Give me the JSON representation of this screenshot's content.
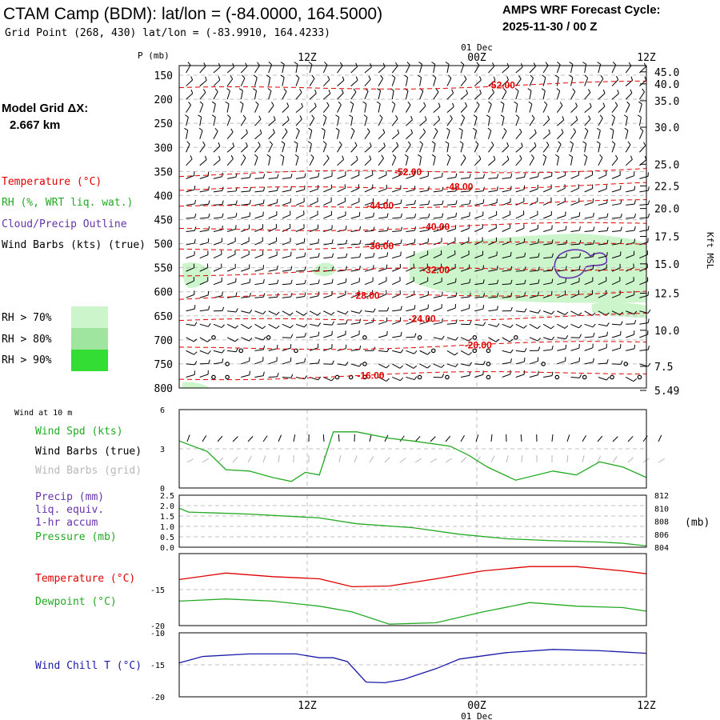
{
  "header": {
    "title": "CTAM Camp (BDM):  lat/lon = (-84.0000, 164.5000)",
    "grid_point": "Grid Point (268, 430) lat/lon = (-83.9910, 164.4233)",
    "cycle_label": "AMPS WRF Forecast Cycle:",
    "cycle_value": "2025-11-30 / 00  Z",
    "model_grid_label": "Model Grid ΔX:",
    "model_grid_value": "2.667 km"
  },
  "colors": {
    "temperature": "#e00000",
    "rh": "#22aa22",
    "cloud": "#6633aa",
    "wind_chill": "#1a1aaa",
    "rh70": "#ccf5cc",
    "rh80": "#9fe59f",
    "rh90": "#33dd33",
    "grid": "#c0c0c0",
    "gray_text": "#b8b8b8"
  },
  "legend": {
    "temperature": "Temperature (°C)",
    "rh": "RH (%, WRT liq. wat.)",
    "cloud": "Cloud/Precip Outline",
    "wind_barbs": "Wind Barbs (kts) (true)",
    "rh70": "RH > 70%",
    "rh80": "RH > 80%",
    "rh90": "RH > 90%"
  },
  "time_axis": {
    "top_date": "01 Dec",
    "bottom_date": "01 Dec",
    "ticks": [
      "12Z",
      "00Z",
      "12Z"
    ]
  },
  "chart_data": [
    {
      "id": "profile",
      "type": "contour",
      "ylabel": "P (mb)",
      "right_label": "Kft MSL",
      "pressure_ticks": [
        150,
        200,
        250,
        300,
        350,
        400,
        450,
        500,
        550,
        600,
        650,
        700,
        750,
        800
      ],
      "pressure_range": [
        130,
        800
      ],
      "height_ticks": [
        {
          "label": "45.0",
          "p": 143
        },
        {
          "label": "40.0",
          "p": 168
        },
        {
          "label": "35.0",
          "p": 203
        },
        {
          "label": "30.0",
          "p": 258
        },
        {
          "label": "25.0",
          "p": 335
        },
        {
          "label": "22.5",
          "p": 380
        },
        {
          "label": "20.0",
          "p": 427
        },
        {
          "label": "17.5",
          "p": 485
        },
        {
          "label": "15.0",
          "p": 542
        },
        {
          "label": "12.5",
          "p": 603
        },
        {
          "label": "10.0",
          "p": 680
        },
        {
          "label": "7.5",
          "p": 755
        },
        {
          "label": "5.49",
          "p": 805
        }
      ],
      "temperature_contours": [
        {
          "label": "-52.00",
          "t": 0.69,
          "p": 171
        },
        {
          "label": "-52.00",
          "t": 0.49,
          "p": 351
        },
        {
          "label": "-48.00",
          "t": 0.6,
          "p": 382
        },
        {
          "label": "-44.00",
          "t": 0.43,
          "p": 421
        },
        {
          "label": "-40.00",
          "t": 0.55,
          "p": 465
        },
        {
          "label": "-36.00",
          "t": 0.43,
          "p": 505
        },
        {
          "label": "-32.00",
          "t": 0.55,
          "p": 555
        },
        {
          "label": "-28.00",
          "t": 0.4,
          "p": 608
        },
        {
          "label": "-24.00",
          "t": 0.52,
          "p": 656
        },
        {
          "label": "-20.00",
          "t": 0.64,
          "p": 711
        },
        {
          "label": "-16.00",
          "t": 0.41,
          "p": 774
        }
      ]
    },
    {
      "id": "wind10m",
      "type": "line",
      "panel_label": "Wind at 10 m",
      "labels": {
        "speed": "Wind Spd (kts)",
        "barbs_true": "Wind Barbs (true)",
        "barbs_grid": "Wind Barbs (grid)"
      },
      "yticks": [
        0,
        3,
        6
      ],
      "ylim": [
        0,
        6
      ],
      "x": [
        0,
        0.06,
        0.1,
        0.15,
        0.2,
        0.24,
        0.27,
        0.3,
        0.33,
        0.38,
        0.45,
        0.5,
        0.58,
        0.62,
        0.66,
        0.72,
        0.8,
        0.85,
        0.9,
        0.95,
        1.0
      ],
      "speed": [
        3.6,
        2.8,
        1.4,
        1.3,
        0.8,
        0.5,
        1.2,
        1.0,
        4.3,
        4.3,
        3.8,
        3.6,
        3.2,
        2.5,
        1.6,
        0.6,
        1.3,
        1.0,
        2.0,
        1.6,
        0.8
      ]
    },
    {
      "id": "precip_pressure",
      "type": "line",
      "labels": {
        "precip": "Precip (mm)",
        "liq": "liq. equiv.",
        "accum": "1-hr accum",
        "pressure": "Pressure (mb)"
      },
      "precip_ticks": [
        "2.5",
        "2.0",
        "1.5",
        "1.0",
        "0.5",
        "0.0"
      ],
      "precip_range": [
        0,
        2.5
      ],
      "pressure_ticks": [
        "812",
        "810",
        "808",
        "806",
        "804"
      ],
      "pressure_range": [
        804,
        812
      ],
      "pressure_unit": "(mb)",
      "x": [
        0,
        0.02,
        0.15,
        0.3,
        0.38,
        0.5,
        0.6,
        0.7,
        0.8,
        0.9,
        0.95,
        1.0
      ],
      "pressure": [
        810.0,
        809.4,
        809.1,
        808.5,
        807.6,
        807.0,
        806.0,
        805.3,
        805.0,
        804.8,
        804.6,
        804.2
      ]
    },
    {
      "id": "temp_dewpoint",
      "type": "line",
      "labels": {
        "temperature": "Temperature (°C)",
        "dewpoint": "Dewpoint (°C)"
      },
      "yticks": [
        -15,
        -20
      ],
      "ylim": [
        -20,
        -10
      ],
      "x": [
        0,
        0.1,
        0.2,
        0.3,
        0.37,
        0.45,
        0.55,
        0.65,
        0.75,
        0.85,
        0.95,
        1.0
      ],
      "temperature": [
        -13.6,
        -12.7,
        -13.2,
        -13.5,
        -14.6,
        -14.5,
        -13.5,
        -12.4,
        -11.8,
        -11.8,
        -12.4,
        -12.8
      ],
      "dewpoint": [
        -16.6,
        -16.3,
        -16.6,
        -17.3,
        -18.1,
        -19.8,
        -19.6,
        -18.1,
        -16.8,
        -17.3,
        -17.5,
        -18.0
      ]
    },
    {
      "id": "wind_chill",
      "type": "line",
      "labels": {
        "wind_chill": "Wind Chill T (°C)"
      },
      "yticks": [
        -10,
        -15,
        -20
      ],
      "ylim": [
        -20,
        -10
      ],
      "x": [
        0,
        0.05,
        0.15,
        0.25,
        0.3,
        0.33,
        0.36,
        0.4,
        0.44,
        0.48,
        0.5,
        0.55,
        0.6,
        0.7,
        0.8,
        0.9,
        1.0
      ],
      "wind_chill": [
        -14.7,
        -13.7,
        -13.3,
        -13.3,
        -13.9,
        -13.9,
        -14.5,
        -17.7,
        -17.8,
        -17.3,
        -16.8,
        -15.6,
        -14.1,
        -13.1,
        -12.6,
        -12.8,
        -13.2
      ]
    }
  ]
}
